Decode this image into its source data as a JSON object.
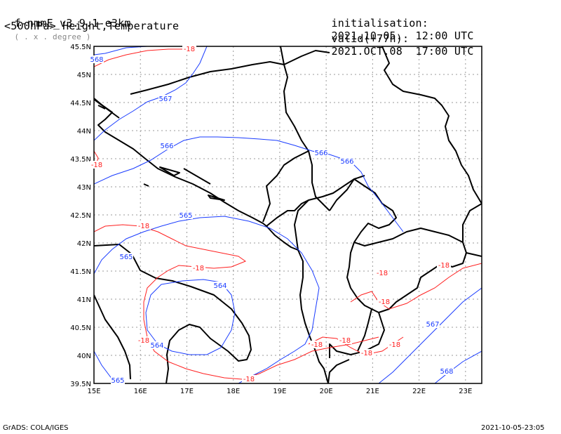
{
  "header": {
    "model": "f-nmmE_v3.9.1-e3km",
    "grid_note": "( . x . degree )",
    "field": "<500hPa> Height,Temperature",
    "init_label": "initialisation:",
    "init_value": "2021.10.05.  12:00 UTC",
    "valid_label": "valid(+77h):",
    "valid_value": "2021.OCT.08  17:00 UTC"
  },
  "footer": {
    "left": "GrADS: COLA/IGES",
    "right": "2021-10-05-23:05"
  },
  "map": {
    "lon_ticks": [
      "15E",
      "16E",
      "17E",
      "18E",
      "19E",
      "20E",
      "21E",
      "22E",
      "23E"
    ],
    "lat_ticks": [
      "45.5N",
      "45N",
      "44.5N",
      "44N",
      "43.5N",
      "43N",
      "42.5N",
      "42N",
      "41.5N",
      "41N",
      "40.5N",
      "40N",
      "39.5N"
    ],
    "colors": {
      "height": "#1a3cff",
      "temperature": "#ff2020",
      "coast": "#000000",
      "grid": "#9a9a9a"
    },
    "height_labels": [
      "568",
      "567",
      "566",
      "566",
      "566",
      "565",
      "565",
      "564",
      "564",
      "565",
      "567",
      "568"
    ],
    "temp_labels": [
      "-18",
      "-18",
      "-18",
      "-18",
      "-18",
      "-18",
      "-18",
      "-18",
      "-18",
      "-18",
      "-18",
      "-18",
      "-18"
    ]
  }
}
